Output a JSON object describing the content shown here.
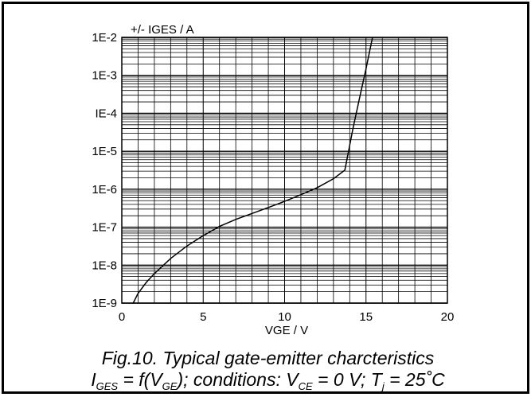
{
  "chart_data": {
    "type": "line",
    "ylabel": "+/- IGES / A",
    "xlabel": "VGE / V",
    "xlim": [
      0,
      20
    ],
    "ylim": [
      1e-09,
      0.01
    ],
    "yscale": "log",
    "xticks": [
      "0",
      "5",
      "10",
      "15",
      "20"
    ],
    "yticks": [
      "1E-9",
      "1E-8",
      "1E-7",
      "1E-6",
      "1E-5",
      "IE-4",
      "1E-3",
      "1E-2"
    ],
    "grid": true,
    "series": [
      {
        "x": [
          0.7,
          1.0,
          1.5,
          2.0,
          3.0,
          4.0,
          5.0,
          6.0,
          7.0,
          8.0,
          9.0,
          10.0,
          11.0,
          12.0,
          13.0,
          13.7,
          14.2,
          14.6,
          15.0,
          15.4
        ],
        "y": [
          1e-09,
          1.8e-09,
          3.5e-09,
          6e-09,
          1.5e-08,
          3.2e-08,
          6e-08,
          1.05e-07,
          1.6e-07,
          2.3e-07,
          3.3e-07,
          4.8e-07,
          7.2e-07,
          1.1e-06,
          1.9e-06,
          3.2e-06,
          4e-05,
          0.00025,
          0.0015,
          0.01
        ]
      }
    ]
  },
  "caption": {
    "line1": "Fig.10.   Typical gate-emitter charcteristics",
    "line2_i": "I",
    "line2_ges": "GES",
    "line2_f": " = f(V",
    "line2_ge": "GE",
    "line2_cond": "); conditions: V",
    "line2_ce": "CE",
    "line2_vce": " = 0 V; T",
    "line2_j": "j",
    "line2_tj": " = 25˚C"
  }
}
